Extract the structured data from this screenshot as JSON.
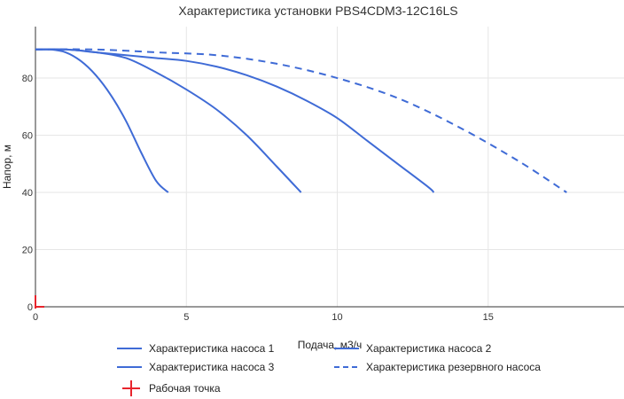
{
  "title": "Характеристика установки PBS4CDM3-12C16LS",
  "xlabel": "Подача, м3/ч",
  "ylabel": "Напор, м",
  "colors": {
    "curve": "#3f6bd6",
    "operating_point": "#e8252d"
  },
  "legend": [
    {
      "label": "Характеристика насоса 1",
      "style": "solid-line"
    },
    {
      "label": "Характеристика насоса 2",
      "style": "solid-line"
    },
    {
      "label": "Характеристика насоса 3",
      "style": "solid-line"
    },
    {
      "label": "Характеристика резервного насоса",
      "style": "dashed-line"
    },
    {
      "label": "Рабочая точка",
      "style": "cross-marker"
    }
  ],
  "chart_data": {
    "type": "line",
    "title": "Характеристика установки PBS4CDM3-12C16LS",
    "xlabel": "Подача, м3/ч",
    "ylabel": "Напор, м",
    "xlim": [
      0,
      19.5
    ],
    "ylim": [
      0,
      98
    ],
    "xticks": [
      0,
      5,
      10,
      15
    ],
    "yticks": [
      0,
      20,
      40,
      60,
      80
    ],
    "grid": true,
    "legend_position": "bottom",
    "series": [
      {
        "name": "Характеристика насоса 1",
        "line": "solid",
        "x": [
          0,
          0.5,
          1.0,
          1.5,
          2.0,
          2.5,
          3.0,
          3.5,
          4.0,
          4.4
        ],
        "y": [
          90,
          90,
          89,
          86,
          81,
          74,
          65,
          54,
          44,
          40
        ]
      },
      {
        "name": "Характеристика насоса 2",
        "line": "solid",
        "x": [
          0,
          1,
          2,
          3,
          4,
          5,
          6,
          7,
          8,
          8.8
        ],
        "y": [
          90,
          90,
          89,
          87,
          82,
          76,
          69,
          60,
          49,
          40
        ]
      },
      {
        "name": "Характеристика насоса 3",
        "line": "solid",
        "x": [
          0,
          1,
          2,
          3,
          4,
          5,
          6,
          7,
          8,
          9,
          10,
          11,
          12,
          13,
          13.2
        ],
        "y": [
          90,
          90,
          89,
          88,
          87,
          86,
          84,
          81,
          77,
          72,
          66,
          58,
          50,
          42,
          40
        ]
      },
      {
        "name": "Характеристика резервного насоса",
        "line": "dashed",
        "x": [
          0,
          2,
          4,
          6,
          8,
          10,
          12,
          14,
          16,
          17.6
        ],
        "y": [
          90,
          90,
          89,
          88,
          85,
          80,
          73,
          63,
          51,
          40
        ]
      },
      {
        "name": "Рабочая точка",
        "line": "none",
        "marker": "cross",
        "x": [
          0
        ],
        "y": [
          0
        ]
      }
    ]
  }
}
